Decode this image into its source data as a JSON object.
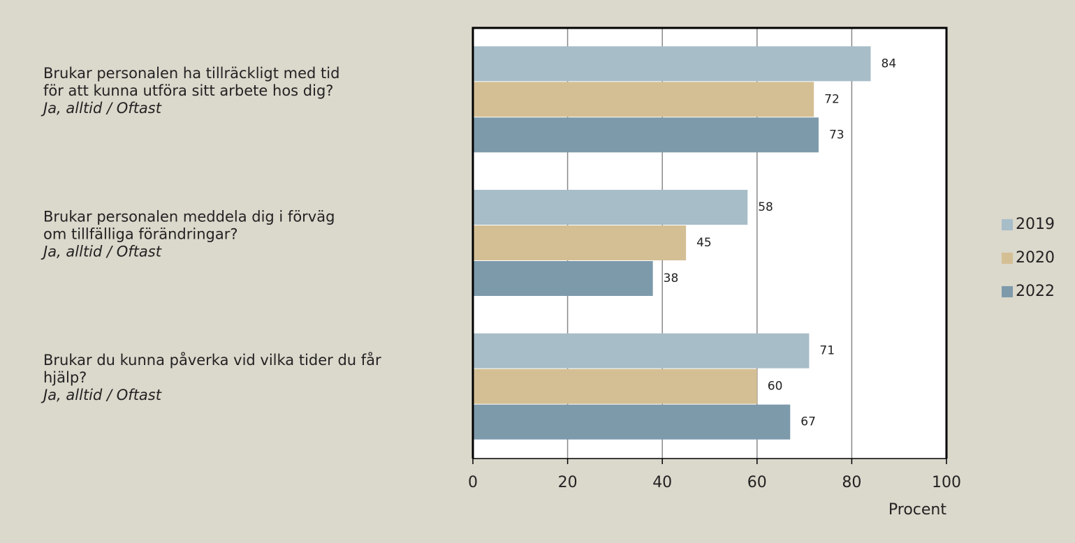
{
  "chart_data": {
    "type": "barh",
    "categories": [
      [
        "Brukar personalen ha tillräckligt med tid",
        "för att kunna utföra sitt arbete hos dig?",
        "Ja, alltid / Oftast"
      ],
      [
        "Brukar personalen meddela dig i förväg",
        "om tillfälliga förändringar?",
        "Ja, alltid / Oftast"
      ],
      [
        "Brukar du kunna påverka vid vilka tider du får",
        "hjälp?",
        "Ja, alltid / Oftast"
      ]
    ],
    "series": [
      {
        "name": "2019",
        "color": "#a7bdc8",
        "values": [
          84,
          58,
          71
        ]
      },
      {
        "name": "2020",
        "color": "#d4bf94",
        "values": [
          72,
          45,
          60
        ]
      },
      {
        "name": "2022",
        "color": "#7d9aab",
        "values": [
          73,
          38,
          67
        ]
      }
    ],
    "xlabel": "Procent",
    "xlim": [
      0,
      100
    ],
    "xticks": [
      0,
      20,
      40,
      60,
      80,
      100
    ],
    "grid": true,
    "legend": "right"
  }
}
